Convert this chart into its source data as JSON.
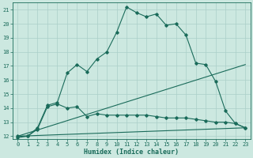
{
  "xlabel": "Humidex (Indice chaleur)",
  "xlim": [
    -0.5,
    23.5
  ],
  "ylim": [
    11.8,
    21.5
  ],
  "yticks": [
    12,
    13,
    14,
    15,
    16,
    17,
    18,
    19,
    20,
    21
  ],
  "xticks": [
    0,
    1,
    2,
    3,
    4,
    5,
    6,
    7,
    8,
    9,
    10,
    11,
    12,
    13,
    14,
    15,
    16,
    17,
    18,
    19,
    20,
    21,
    22,
    23
  ],
  "background_color": "#cce8e0",
  "line_color": "#1a6b5a",
  "grid_color": "#aacfc8",
  "line1_x": [
    0,
    1,
    2,
    3,
    4,
    5,
    6,
    7,
    8,
    9,
    10,
    11,
    12,
    13,
    14,
    15,
    16,
    17,
    18,
    19,
    20,
    21,
    22,
    23
  ],
  "line1_y": [
    11.9,
    12.0,
    12.6,
    14.2,
    14.4,
    16.5,
    17.1,
    16.6,
    17.5,
    18.0,
    19.4,
    21.2,
    20.8,
    20.5,
    20.7,
    19.9,
    20.0,
    19.2,
    17.2,
    17.1,
    15.9,
    13.8,
    12.9,
    12.6
  ],
  "line2_x": [
    0,
    1,
    2,
    3,
    4,
    5,
    6,
    7,
    8,
    9,
    10,
    11,
    12,
    13,
    14,
    15,
    16,
    17,
    18,
    19,
    20,
    21,
    22,
    23
  ],
  "line2_y": [
    12.0,
    12.0,
    12.5,
    14.1,
    14.3,
    14.0,
    14.1,
    13.4,
    13.6,
    13.5,
    13.5,
    13.5,
    13.5,
    13.5,
    13.4,
    13.3,
    13.3,
    13.3,
    13.2,
    13.1,
    13.0,
    13.0,
    12.9,
    12.6
  ],
  "line3_x": [
    0,
    23
  ],
  "line3_y": [
    12.0,
    17.1
  ],
  "line4_x": [
    0,
    23
  ],
  "line4_y": [
    12.0,
    12.6
  ],
  "tick_fontsize": 5.0,
  "xlabel_fontsize": 6.0
}
